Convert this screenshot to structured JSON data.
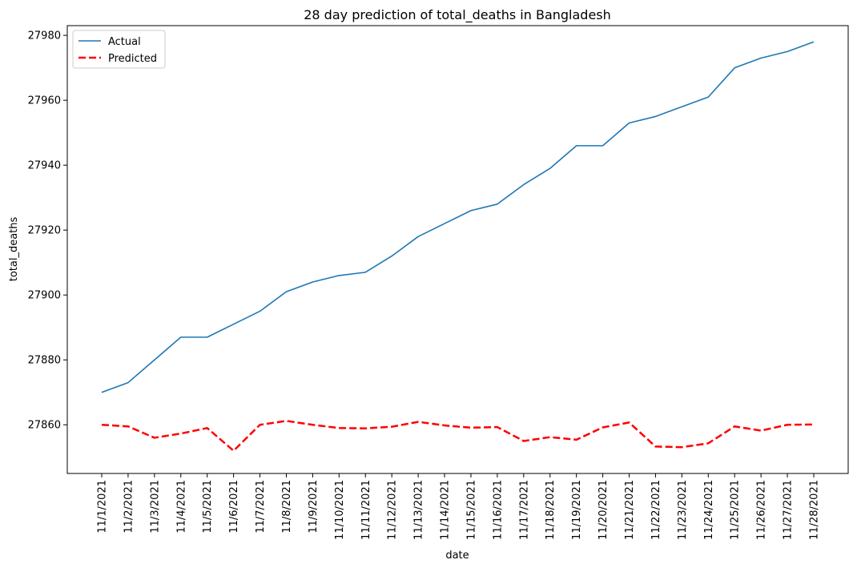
{
  "chart_data": {
    "type": "line",
    "title": "28 day prediction of total_deaths in Bangladesh",
    "xlabel": "date",
    "ylabel": "total_deaths",
    "ylim": [
      27845,
      27983
    ],
    "yticks": [
      27860,
      27880,
      27900,
      27920,
      27940,
      27960,
      27980
    ],
    "grid": false,
    "legend_position": "top-left",
    "categories": [
      "11/1/2021",
      "11/2/2021",
      "11/3/2021",
      "11/4/2021",
      "11/5/2021",
      "11/6/2021",
      "11/7/2021",
      "11/8/2021",
      "11/9/2021",
      "11/10/2021",
      "11/11/2021",
      "11/12/2021",
      "11/13/2021",
      "11/14/2021",
      "11/15/2021",
      "11/16/2021",
      "11/17/2021",
      "11/18/2021",
      "11/19/2021",
      "11/20/2021",
      "11/21/2021",
      "11/22/2021",
      "11/23/2021",
      "11/24/2021",
      "11/25/2021",
      "11/26/2021",
      "11/27/2021",
      "11/28/2021"
    ],
    "series": [
      {
        "name": "Actual",
        "color": "#1f77b4",
        "style": "solid",
        "values": [
          27870,
          27873,
          27880,
          27887,
          27887,
          27891,
          27895,
          27901,
          27904,
          27906,
          27907,
          27912,
          27918,
          27922,
          27926,
          27928,
          27934,
          27939,
          27946,
          27946,
          27953,
          27955,
          27958,
          27961,
          27970,
          27973,
          27975,
          27978
        ]
      },
      {
        "name": "Predicted",
        "color": "#ff0000",
        "style": "dashed",
        "values": [
          27860.0,
          27859.5,
          27856.0,
          27857.3,
          27859.0,
          27852.0,
          27860.0,
          27861.2,
          27860.0,
          27859.0,
          27858.9,
          27859.4,
          27860.9,
          27859.8,
          27859.1,
          27859.3,
          27855.0,
          27856.2,
          27855.4,
          27859.2,
          27860.7,
          27853.3,
          27853.1,
          27854.3,
          27859.5,
          27858.2,
          27860.0,
          27860.1
        ]
      }
    ]
  }
}
